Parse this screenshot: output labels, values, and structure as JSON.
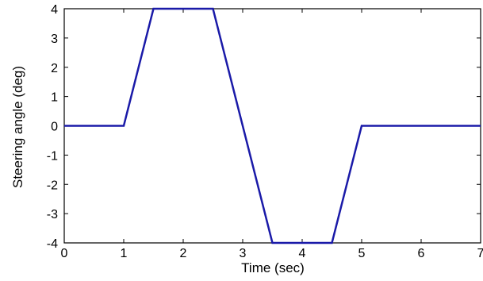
{
  "chart_data": {
    "type": "line",
    "title": "",
    "xlabel": "Time (sec)",
    "ylabel": "Steering angle (deg)",
    "xlim": [
      0,
      7
    ],
    "ylim": [
      -4,
      4
    ],
    "xticks": [
      0,
      1,
      2,
      3,
      4,
      5,
      6,
      7
    ],
    "yticks": [
      4,
      3,
      2,
      1,
      0,
      -1,
      -2,
      -3,
      -4
    ],
    "grid": false,
    "series": [
      {
        "x": [
          0,
          1,
          1.5,
          2.5,
          3.5,
          4.5,
          5,
          7
        ],
        "y": [
          0,
          0,
          4,
          4,
          -4,
          -4,
          0,
          0
        ]
      }
    ],
    "line_color": "#1a1aa8"
  }
}
